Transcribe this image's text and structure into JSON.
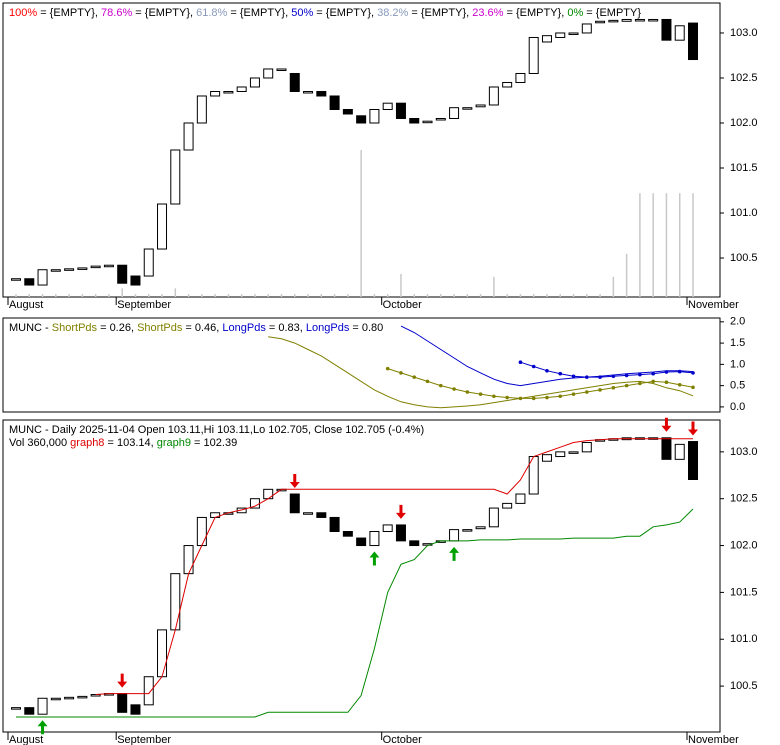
{
  "chart_data": {
    "type": "candlestick",
    "categories": [
      "August",
      null,
      null,
      null,
      null,
      null,
      null,
      null,
      "September",
      null,
      null,
      null,
      null,
      null,
      null,
      null,
      null,
      null,
      null,
      null,
      null,
      null,
      null,
      null,
      null,
      null,
      null,
      null,
      "October",
      null,
      null,
      null,
      null,
      null,
      null,
      null,
      null,
      null,
      null,
      null,
      null,
      null,
      null,
      null,
      null,
      null,
      null,
      null,
      null,
      null,
      null,
      "November"
    ],
    "open": [
      100.27,
      100.27,
      100.2,
      100.37,
      100.38,
      100.39,
      100.41,
      100.42,
      100.42,
      100.3,
      100.3,
      100.6,
      101.1,
      101.7,
      102.0,
      102.3,
      102.35,
      102.35,
      102.4,
      102.5,
      102.6,
      102.55,
      102.35,
      102.35,
      102.3,
      102.15,
      102.08,
      102.0,
      102.15,
      102.22,
      102.05,
      102.02,
      102.05,
      102.05,
      102.17,
      102.18,
      102.2,
      102.4,
      102.45,
      102.55,
      102.9,
      102.95,
      103.0,
      103.0,
      103.13,
      103.14,
      103.13,
      103.15,
      103.15,
      103.15,
      102.92,
      103.11
    ],
    "close": [
      100.27,
      100.2,
      100.37,
      100.37,
      100.38,
      100.39,
      100.41,
      100.42,
      100.22,
      100.2,
      100.6,
      101.1,
      101.7,
      102.0,
      102.3,
      102.35,
      102.35,
      102.4,
      102.5,
      102.6,
      102.6,
      102.35,
      102.35,
      102.3,
      102.15,
      102.1,
      102.0,
      102.15,
      102.22,
      102.05,
      102.0,
      102.02,
      102.05,
      102.17,
      102.17,
      102.2,
      102.4,
      102.45,
      102.55,
      102.95,
      102.97,
      103.0,
      103.0,
      103.1,
      103.13,
      103.14,
      103.15,
      103.15,
      103.15,
      102.92,
      103.08,
      102.705
    ],
    "volume": [
      10000,
      10000,
      10000,
      10000,
      10000,
      10000,
      10000,
      10000,
      30000,
      10000,
      10000,
      10000,
      30000,
      10000,
      10000,
      10000,
      10000,
      10000,
      10000,
      10000,
      10000,
      10000,
      10000,
      10000,
      10000,
      10000,
      510000,
      10000,
      10000,
      80000,
      10000,
      10000,
      10000,
      10000,
      10000,
      10000,
      70000,
      10000,
      10000,
      10000,
      10000,
      10000,
      10000,
      10000,
      10000,
      70000,
      150000,
      360000,
      360000,
      360000,
      360000,
      360000
    ],
    "panels": [
      {
        "header": [
          {
            "text": "100%",
            "color": "#ff0000"
          },
          {
            "text": " = {EMPTY}, ",
            "color": "#000000"
          },
          {
            "text": "78.6%",
            "color": "#cc00cc"
          },
          {
            "text": " = {EMPTY}, ",
            "color": "#000000"
          },
          {
            "text": "61.8%",
            "color": "#8899bb"
          },
          {
            "text": " = {EMPTY}, ",
            "color": "#000000"
          },
          {
            "text": "50%",
            "color": "#0000cc"
          },
          {
            "text": " = {EMPTY}, ",
            "color": "#000000"
          },
          {
            "text": "38.2%",
            "color": "#8899bb"
          },
          {
            "text": " = {EMPTY}, ",
            "color": "#000000"
          },
          {
            "text": "23.6%",
            "color": "#cc00cc"
          },
          {
            "text": " = {EMPTY}, ",
            "color": "#000000"
          },
          {
            "text": "0%",
            "color": "#008800"
          },
          {
            "text": " = {EMPTY}",
            "color": "#000000"
          }
        ],
        "ylim": [
          100.067,
          103.333
        ],
        "yticks": [
          100.5,
          {
            "value": 101.0,
            "label": "101.0"
          },
          101.5,
          {
            "value": 102.0,
            "label": "102.0"
          },
          102.5,
          {
            "value": 103.0,
            "label": "103.0"
          }
        ]
      },
      {
        "type": "line",
        "header": [
          {
            "text": "MUNC - ",
            "color": "#000000"
          },
          {
            "text": "ShortPds",
            "color": "#808000"
          },
          {
            "text": " = 0.26, ",
            "color": "#000000"
          },
          {
            "text": "ShortPds",
            "color": "#808000"
          },
          {
            "text": " = 0.46, ",
            "color": "#000000"
          },
          {
            "text": "LongPds",
            "color": "#0000cc"
          },
          {
            "text": " = 0.83, ",
            "color": "#000000"
          },
          {
            "text": "LongPds",
            "color": "#0000cc"
          },
          {
            "text": " = 0.80",
            "color": "#000000"
          }
        ],
        "ylim": [
          -0.12,
          2.09
        ],
        "yticks": [
          {
            "value": 0.0,
            "label": "0.0"
          },
          0.5,
          {
            "value": 1.0,
            "label": "1.0"
          },
          1.5,
          {
            "value": 2.0,
            "label": "2.0"
          }
        ],
        "series": [
          {
            "name": "ShortPds",
            "color": "#808000",
            "markers": false,
            "values": [
              null,
              null,
              null,
              null,
              null,
              null,
              null,
              null,
              null,
              null,
              null,
              null,
              null,
              null,
              null,
              null,
              null,
              null,
              null,
              1.65,
              1.6,
              1.5,
              1.35,
              1.2,
              1.0,
              0.8,
              0.6,
              0.4,
              0.25,
              0.12,
              0.05,
              0.0,
              -0.02,
              0.0,
              0.02,
              0.05,
              0.1,
              0.15,
              0.2,
              0.25,
              0.3,
              0.35,
              0.4,
              0.45,
              0.5,
              0.55,
              0.58,
              0.6,
              0.55,
              0.45,
              0.38,
              0.26
            ]
          },
          {
            "name": "ShortPds",
            "color": "#808000",
            "markers": true,
            "values": [
              null,
              null,
              null,
              null,
              null,
              null,
              null,
              null,
              null,
              null,
              null,
              null,
              null,
              null,
              null,
              null,
              null,
              null,
              null,
              null,
              null,
              null,
              null,
              null,
              null,
              null,
              null,
              null,
              0.9,
              0.8,
              0.7,
              0.6,
              0.5,
              0.42,
              0.35,
              0.3,
              0.25,
              0.22,
              0.2,
              0.2,
              0.22,
              0.25,
              0.3,
              0.35,
              0.4,
              0.45,
              0.5,
              0.55,
              0.6,
              0.58,
              0.52,
              0.46
            ]
          },
          {
            "name": "LongPds",
            "color": "#0000cc",
            "markers": false,
            "values": [
              null,
              null,
              null,
              null,
              null,
              null,
              null,
              null,
              null,
              null,
              null,
              null,
              null,
              null,
              null,
              null,
              null,
              null,
              null,
              null,
              null,
              null,
              null,
              null,
              null,
              null,
              null,
              null,
              null,
              1.9,
              1.75,
              1.55,
              1.35,
              1.15,
              0.95,
              0.8,
              0.65,
              0.55,
              0.5,
              0.55,
              0.6,
              0.65,
              0.68,
              0.7,
              0.72,
              0.75,
              0.78,
              0.8,
              0.82,
              0.85,
              0.85,
              0.83
            ]
          },
          {
            "name": "LongPds",
            "color": "#0000cc",
            "markers": true,
            "values": [
              null,
              null,
              null,
              null,
              null,
              null,
              null,
              null,
              null,
              null,
              null,
              null,
              null,
              null,
              null,
              null,
              null,
              null,
              null,
              null,
              null,
              null,
              null,
              null,
              null,
              null,
              null,
              null,
              null,
              null,
              null,
              null,
              null,
              null,
              null,
              null,
              null,
              null,
              1.05,
              0.95,
              0.85,
              0.78,
              0.72,
              0.7,
              0.7,
              0.72,
              0.74,
              0.76,
              0.78,
              0.82,
              0.83,
              0.8
            ]
          }
        ]
      },
      {
        "header": [
          {
            "text": "MUNC - Daily 2025-11-04 Open 103.11,Hi 103.11,Lo 102.705, Close 102.705 (-0.4%)",
            "color": "#000000"
          }
        ],
        "header2": [
          {
            "text": "Vol 360,000 ",
            "color": "#000000"
          },
          {
            "text": "graph8",
            "color": "#dd0000"
          },
          {
            "text": " = 103.14, ",
            "color": "#000000"
          },
          {
            "text": "graph9",
            "color": "#008800"
          },
          {
            "text": " = 102.39",
            "color": "#000000"
          }
        ],
        "ylim": [
          100.01,
          103.34
        ],
        "yticks": [
          100.5,
          {
            "value": 101.0,
            "label": "101.0"
          },
          101.5,
          {
            "value": 102.0,
            "label": "102.0"
          },
          102.5,
          {
            "value": 103.0,
            "label": "103.0"
          }
        ],
        "series": [
          {
            "name": "graph8",
            "color": "#dd0000",
            "markers": false,
            "values": [
              null,
              null,
              null,
              null,
              null,
              null,
              100.41,
              100.42,
              100.42,
              100.42,
              100.42,
              100.6,
              101.1,
              101.7,
              102.0,
              102.3,
              102.35,
              102.38,
              102.42,
              102.5,
              102.6,
              102.6,
              102.6,
              102.6,
              102.6,
              102.6,
              102.6,
              102.6,
              102.6,
              102.6,
              102.6,
              102.6,
              102.6,
              102.6,
              102.6,
              102.6,
              102.6,
              102.55,
              102.7,
              102.95,
              103.0,
              103.05,
              103.1,
              103.12,
              103.13,
              103.14,
              103.14,
              103.14,
              103.14,
              103.14,
              103.14,
              103.14
            ]
          },
          {
            "name": "graph9",
            "color": "#008800",
            "markers": false,
            "values": [
              100.17,
              100.17,
              100.17,
              100.17,
              100.17,
              100.17,
              100.17,
              100.17,
              100.17,
              100.17,
              100.17,
              100.17,
              100.17,
              100.17,
              100.17,
              100.17,
              100.17,
              100.17,
              100.17,
              100.22,
              100.22,
              100.22,
              100.22,
              100.22,
              100.22,
              100.22,
              100.4,
              100.9,
              101.5,
              101.8,
              101.85,
              102.0,
              102.05,
              102.05,
              102.05,
              102.06,
              102.06,
              102.06,
              102.07,
              102.07,
              102.07,
              102.07,
              102.08,
              102.08,
              102.08,
              102.08,
              102.1,
              102.1,
              102.2,
              102.22,
              102.25,
              102.39
            ]
          }
        ],
        "sell_signals": [
          8,
          21,
          29,
          49,
          51
        ],
        "buy_signals": [
          2,
          27,
          33
        ]
      }
    ]
  }
}
